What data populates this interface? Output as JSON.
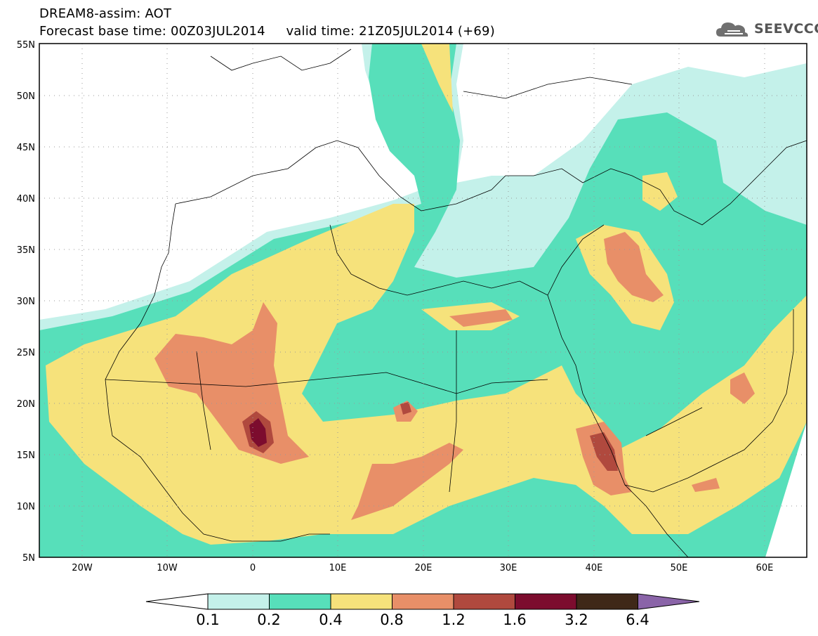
{
  "title": {
    "line1": "DREAM8-assim: AOT",
    "line2": "Forecast base time: 00Z03JUL2014     valid time: 21Z05JUL2014 (+69)"
  },
  "logo": {
    "text": "SEEVCCC",
    "icon": "cloud-icon"
  },
  "map": {
    "lon_range": [
      -25,
      65
    ],
    "lat_range": [
      5,
      55
    ],
    "lat_labels": [
      "5N",
      "10N",
      "15N",
      "20N",
      "25N",
      "30N",
      "35N",
      "40N",
      "45N",
      "50N",
      "55N"
    ],
    "lon_labels": [
      "20W",
      "10W",
      "0",
      "10E",
      "20E",
      "30E",
      "40E",
      "50E",
      "60E"
    ]
  },
  "colorbar": {
    "levels": [
      "0.1",
      "0.2",
      "0.4",
      "0.8",
      "1.2",
      "1.6",
      "3.2",
      "6.4"
    ],
    "colors": [
      "#ffffff",
      "#c4f1ea",
      "#57dfba",
      "#f6e27b",
      "#e88f68",
      "#b0493e",
      "#7c0c2e",
      "#3f2818",
      "#8a64a8"
    ]
  }
}
